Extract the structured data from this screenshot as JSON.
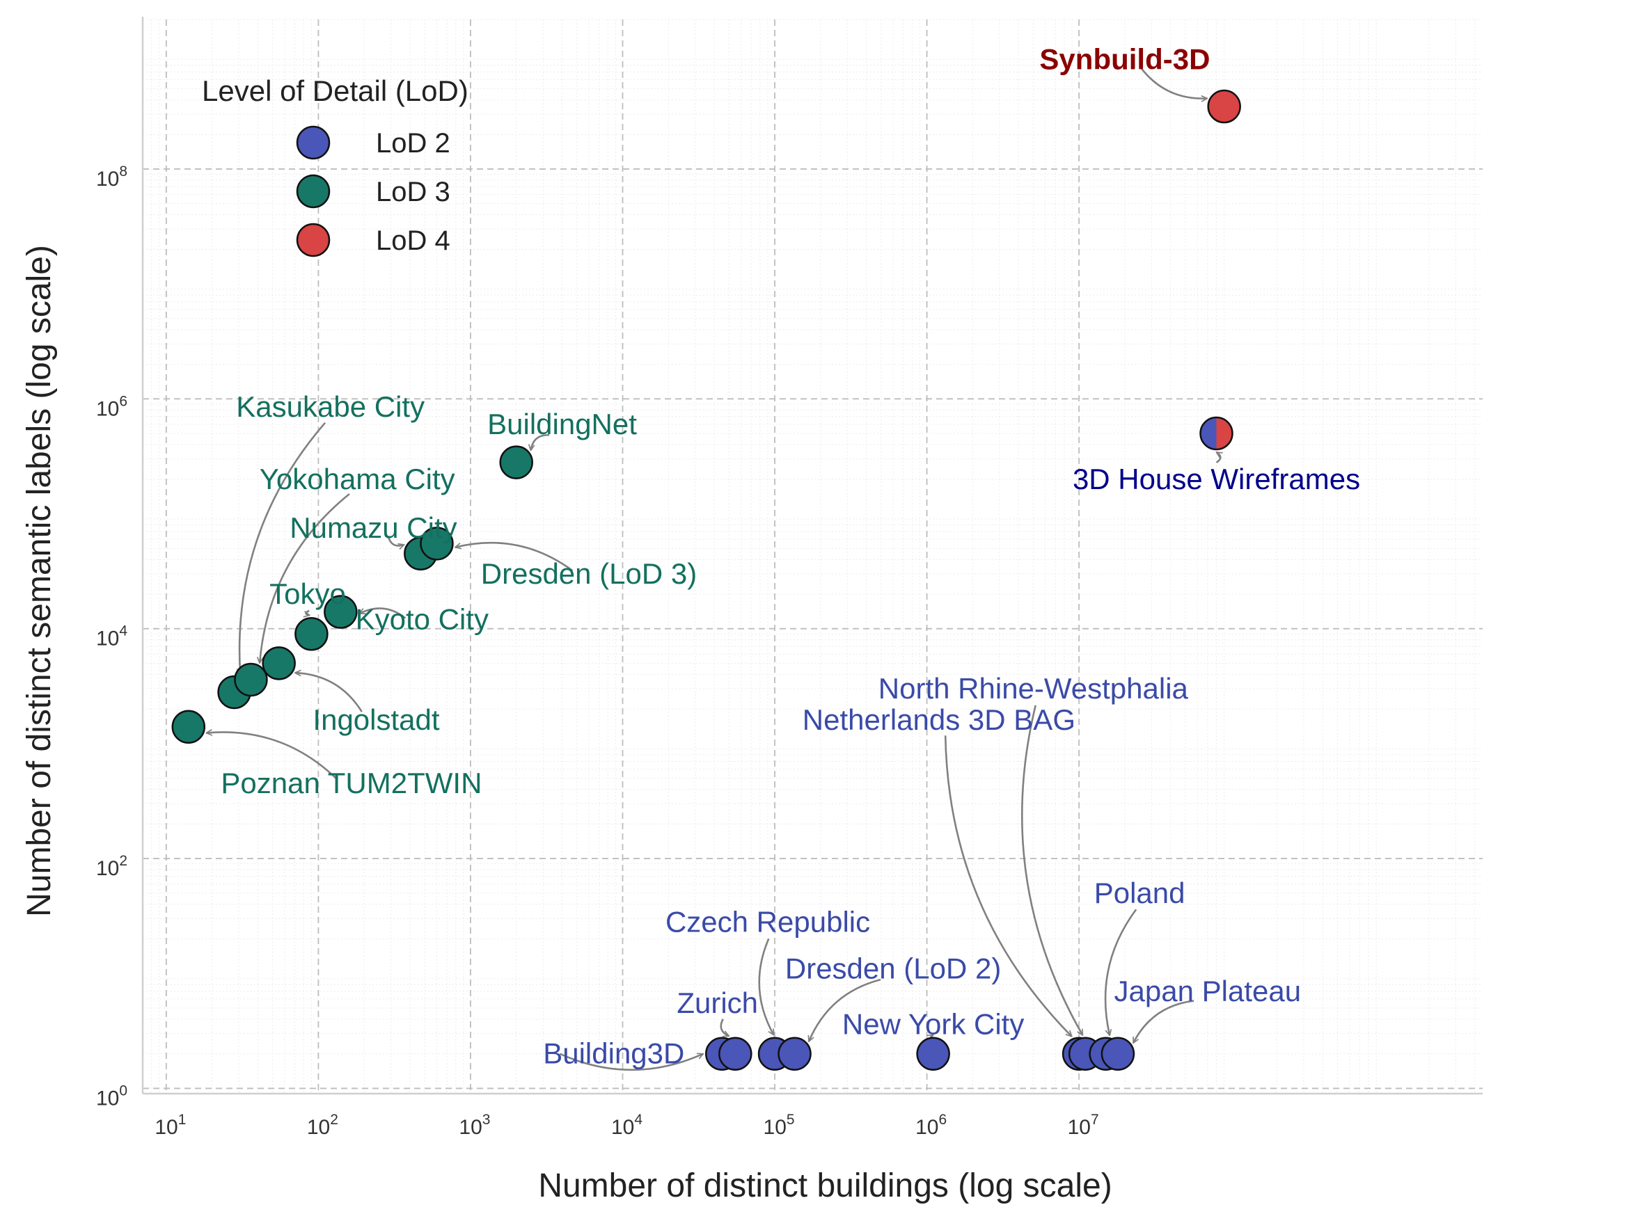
{
  "chart_data": {
    "type": "scatter",
    "xlabel": "Number of distinct buildings (log scale)",
    "ylabel": "Number of distinct semantic labels (log scale)",
    "xscale": "log",
    "yscale": "log",
    "xlim": [
      7,
      4500000000
    ],
    "ylim": [
      0.9,
      2000000000
    ],
    "grid": true,
    "legend": {
      "title": "Level of Detail (LoD)",
      "placement": "top-left",
      "entries": [
        {
          "label": "LoD 2",
          "color": "#4a56b8"
        },
        {
          "label": "LoD 3",
          "color": "#177868"
        },
        {
          "label": "LoD 4",
          "color": "#d94444"
        }
      ]
    },
    "x_ticks": [
      {
        "value": 10,
        "base": "10",
        "exp": "1"
      },
      {
        "value": 100,
        "base": "10",
        "exp": "2"
      },
      {
        "value": 1000,
        "base": "10",
        "exp": "3"
      },
      {
        "value": 10000,
        "base": "10",
        "exp": "4"
      },
      {
        "value": 100000,
        "base": "10",
        "exp": "5"
      },
      {
        "value": 1000000,
        "base": "10",
        "exp": "6"
      },
      {
        "value": 10000000,
        "base": "10",
        "exp": "7"
      }
    ],
    "y_ticks": [
      {
        "value": 1,
        "base": "10",
        "exp": "0"
      },
      {
        "value": 100,
        "base": "10",
        "exp": "2"
      },
      {
        "value": 10000,
        "base": "10",
        "exp": "4"
      },
      {
        "value": 1000000,
        "base": "10",
        "exp": "6"
      },
      {
        "value": 100000000,
        "base": "10",
        "exp": "8"
      }
    ],
    "colors": {
      "lod2_text": "#3a4aa8",
      "lod3_text": "#13705e",
      "synbuild_text": "#8b0000",
      "wireframes_text": "#00008b",
      "arrow": "#808080"
    },
    "points": [
      {
        "label": "Synbuild-3D",
        "x": 90000000,
        "y": 350000000,
        "lod": 4,
        "bold": true,
        "text_color": "synbuild_text",
        "lx": 20000000,
        "ly": 900000000,
        "anchor": "middle"
      },
      {
        "label": "3D House Wireframes",
        "x": 80000000,
        "y": 500000,
        "lod": "2+4",
        "text_color": "wireframes_text",
        "lx": 80000000,
        "ly": 200000,
        "anchor": "middle"
      },
      {
        "label": "BuildingNet",
        "x": 2000,
        "y": 280000,
        "lod": 3,
        "lx": 4000,
        "ly": 600000,
        "anchor": "middle"
      },
      {
        "label": "Kasukabe City",
        "x": 28,
        "y": 2800,
        "lod": 3,
        "lx": 120,
        "ly": 850000,
        "anchor": "middle"
      },
      {
        "label": "Yokohama City",
        "x": 36,
        "y": 3600,
        "lod": 3,
        "lx": 180,
        "ly": 200000,
        "anchor": "middle"
      },
      {
        "label": "Numazu City",
        "x": 470,
        "y": 45000,
        "lod": 3,
        "lx": 230,
        "ly": 75000,
        "anchor": "middle"
      },
      {
        "label": "Dresden (LoD 3)",
        "x": 600,
        "y": 55000,
        "lod": 3,
        "lx": 6000,
        "ly": 30000,
        "anchor": "middle"
      },
      {
        "label": "Tokyo",
        "x": 90,
        "y": 9000,
        "lod": 3,
        "lx": 85,
        "ly": 20000,
        "anchor": "middle"
      },
      {
        "label": "Kyoto City",
        "x": 140,
        "y": 14000,
        "lod": 3,
        "lx": 480,
        "ly": 12000,
        "anchor": "middle"
      },
      {
        "label": "Ingolstadt",
        "x": 55,
        "y": 5000,
        "lod": 3,
        "lx": 240,
        "ly": 1600,
        "anchor": "middle"
      },
      {
        "label": "Poznan TUM2TWIN",
        "x": 14,
        "y": 1400,
        "lod": 3,
        "lx": 165,
        "ly": 450,
        "anchor": "middle"
      },
      {
        "label": "Building3D",
        "x": 45000,
        "y": 2,
        "lod": 2,
        "lx": 3000,
        "ly": 2,
        "anchor": "start"
      },
      {
        "label": "Zurich",
        "x": 55000,
        "y": 2,
        "lod": 2,
        "lx": 42000,
        "ly": 5.5,
        "anchor": "middle"
      },
      {
        "label": "Czech Republic",
        "x": 100000,
        "y": 2,
        "lod": 2,
        "lx": 90000,
        "ly": 28,
        "anchor": "middle"
      },
      {
        "label": "Dresden (LoD 2)",
        "x": 135000,
        "y": 2,
        "lod": 2,
        "lx": 600000,
        "ly": 11,
        "anchor": "middle"
      },
      {
        "label": "New York City",
        "x": 1100000,
        "y": 2,
        "lod": 2,
        "lx": 1100000,
        "ly": 3.6,
        "anchor": "middle"
      },
      {
        "label": "Netherlands 3D BAG",
        "x": 10000000,
        "y": 2,
        "lod": 2,
        "lx": 1200000,
        "ly": 1600,
        "anchor": "middle",
        "fixed_offset": true
      },
      {
        "label": "North Rhine-Westphalia",
        "x": 11000000,
        "y": 2,
        "lod": 2,
        "lx": 5000000,
        "ly": 3000,
        "anchor": "middle",
        "fixed_offset": true
      },
      {
        "label": "Poland",
        "x": 15000000,
        "y": 2,
        "lod": 2,
        "lx": 25000000,
        "ly": 50,
        "anchor": "middle"
      },
      {
        "label": "Japan Plateau",
        "x": 18000000,
        "y": 2,
        "lod": 2,
        "lx": 70000000,
        "ly": 7,
        "anchor": "middle"
      }
    ]
  }
}
